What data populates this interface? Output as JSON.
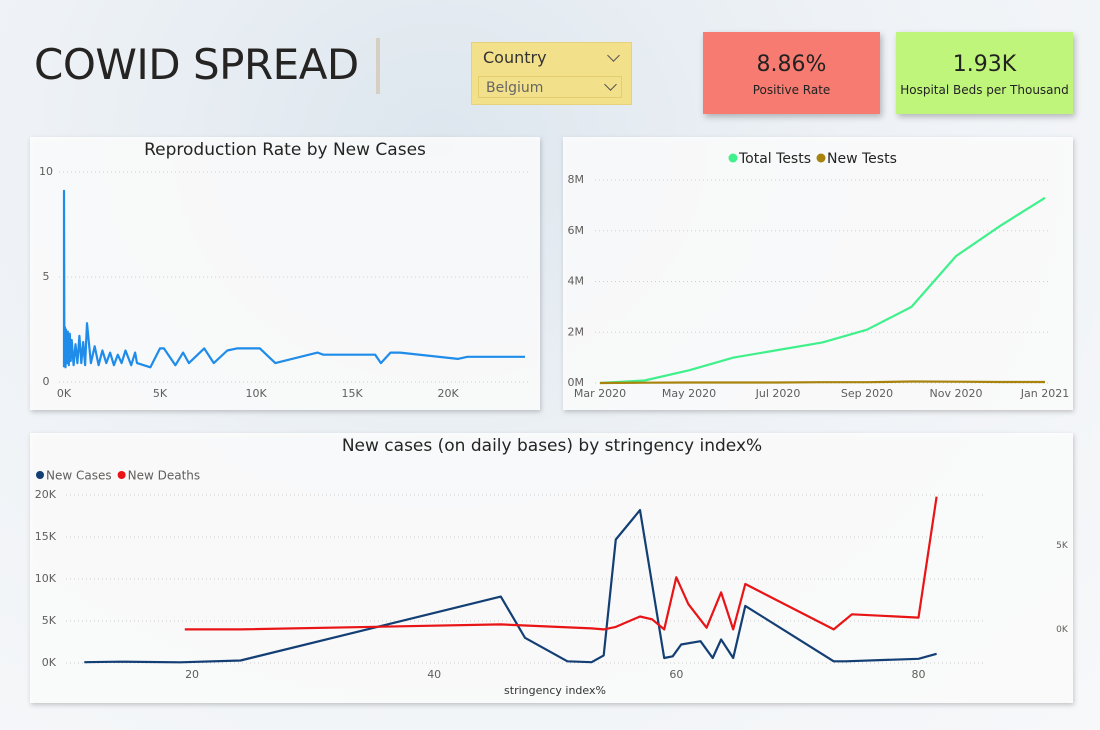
{
  "header": {
    "title": "COWID SPREAD"
  },
  "slicer": {
    "label": "Country",
    "value": "Belgium"
  },
  "cards": [
    {
      "value": "8.86%",
      "label": "Positive Rate",
      "color": "#f77b70"
    },
    {
      "value": "1.93K",
      "label": "Hospital Beds per Thousand",
      "color": "#c0f57b"
    }
  ],
  "chart_data": [
    {
      "type": "line",
      "title": "Reproduction Rate by New Cases",
      "grid": true,
      "color": "#1f8ce9",
      "x": [
        0,
        0,
        20,
        50,
        80,
        100,
        150,
        200,
        250,
        300,
        350,
        400,
        500,
        600,
        700,
        800,
        900,
        1000,
        1100,
        1200,
        1400,
        1600,
        1800,
        2000,
        2200,
        2400,
        2600,
        2800,
        3000,
        3200,
        3500,
        3700,
        3800,
        4500,
        5000,
        5200,
        5800,
        6200,
        6500,
        7300,
        7800,
        8500,
        9000,
        10200,
        11000,
        13200,
        13500,
        16200,
        16500,
        17000,
        17500,
        20500,
        21000,
        24000
      ],
      "values": [
        0.7,
        9.1,
        0.8,
        2.6,
        0.7,
        2.5,
        0.9,
        2.4,
        0.8,
        2.3,
        1.0,
        2.0,
        0.8,
        1.8,
        0.9,
        2.2,
        0.9,
        1.9,
        0.8,
        2.8,
        0.9,
        1.7,
        0.8,
        1.5,
        0.9,
        1.4,
        0.8,
        1.3,
        0.9,
        1.5,
        0.8,
        1.4,
        0.9,
        0.7,
        1.6,
        1.6,
        0.8,
        1.4,
        0.9,
        1.6,
        0.9,
        1.5,
        1.6,
        1.6,
        0.9,
        1.4,
        1.3,
        1.3,
        0.9,
        1.4,
        1.4,
        1.1,
        1.2,
        1.2
      ],
      "xlim": [
        0,
        24000
      ],
      "xticks": [
        {
          "value": 0,
          "label": "0K"
        },
        {
          "value": 5000,
          "label": "5K"
        },
        {
          "value": 10000,
          "label": "10K"
        },
        {
          "value": 15000,
          "label": "15K"
        },
        {
          "value": 20000,
          "label": "20K"
        }
      ],
      "ylim": [
        0,
        10
      ],
      "yticks": [
        0,
        5,
        10
      ]
    },
    {
      "type": "line",
      "grid": true,
      "legend": "top",
      "categories": [
        "Mar 2020",
        null,
        "May 2020",
        null,
        "Jul 2020",
        null,
        "Sep 2020",
        null,
        "Nov 2020",
        null,
        "Jan 2021"
      ],
      "series": [
        {
          "name": "Total Tests",
          "color": "#3ff08b",
          "values": [
            0,
            100000,
            500000,
            1000000,
            1300000,
            1600000,
            2100000,
            3000000,
            5000000,
            6200000,
            7300000
          ]
        },
        {
          "name": "New Tests",
          "color": "#a8840f",
          "values": [
            0,
            10000,
            20000,
            20000,
            20000,
            30000,
            30000,
            60000,
            50000,
            40000,
            40000
          ]
        }
      ],
      "ylim": [
        0,
        8000000
      ],
      "yticks": [
        {
          "value": 0,
          "label": "0M"
        },
        {
          "value": 2000000,
          "label": "2M"
        },
        {
          "value": 4000000,
          "label": "4M"
        },
        {
          "value": 6000000,
          "label": "6M"
        },
        {
          "value": 8000000,
          "label": "8M"
        }
      ]
    },
    {
      "type": "line",
      "title": "New cases (on daily bases) by stringency index%",
      "x_label": "stringency index%",
      "grid": true,
      "legend": "top-left",
      "series": [
        {
          "name": "New Cases",
          "color": "#133f74",
          "x": [
            11.1,
            14,
            19,
            24,
            45.5,
            47.5,
            51,
            53,
            54,
            55,
            57,
            59,
            59.7,
            60.4,
            62,
            63,
            63.7,
            64.7,
            65.7,
            73,
            74,
            80,
            81.5
          ],
          "values": [
            100,
            150,
            80,
            300,
            7900,
            3000,
            200,
            100,
            900,
            14700,
            18200,
            600,
            800,
            2200,
            2600,
            600,
            2800,
            600,
            6800,
            200,
            200,
            500,
            1100
          ]
        },
        {
          "name": "New Deaths",
          "color": "#e81416",
          "axis": "y2",
          "x": [
            19.4,
            24,
            45.5,
            53,
            54,
            55,
            57,
            58,
            59,
            60,
            61,
            62.5,
            63.7,
            64.7,
            65.7,
            73,
            74.5,
            80,
            81.5
          ],
          "values": [
            0,
            0,
            300,
            60,
            0,
            150,
            770,
            600,
            0,
            3100,
            1500,
            100,
            2200,
            0,
            2700,
            0,
            900,
            700,
            7900
          ]
        }
      ],
      "xlim": [
        10,
        85
      ],
      "xticks": [
        20,
        40,
        60,
        80
      ],
      "ylim": [
        0,
        20000
      ],
      "yticks": [
        {
          "value": 0,
          "label": "0K"
        },
        {
          "value": 5000,
          "label": "5K"
        },
        {
          "value": 10000,
          "label": "10K"
        },
        {
          "value": 15000,
          "label": "15K"
        },
        {
          "value": 20000,
          "label": "20K"
        }
      ],
      "y2lim": [
        -2000,
        8000
      ],
      "y2ticks": [
        {
          "value": 0,
          "label": "0K"
        },
        {
          "value": 5000,
          "label": "5K"
        }
      ]
    }
  ]
}
